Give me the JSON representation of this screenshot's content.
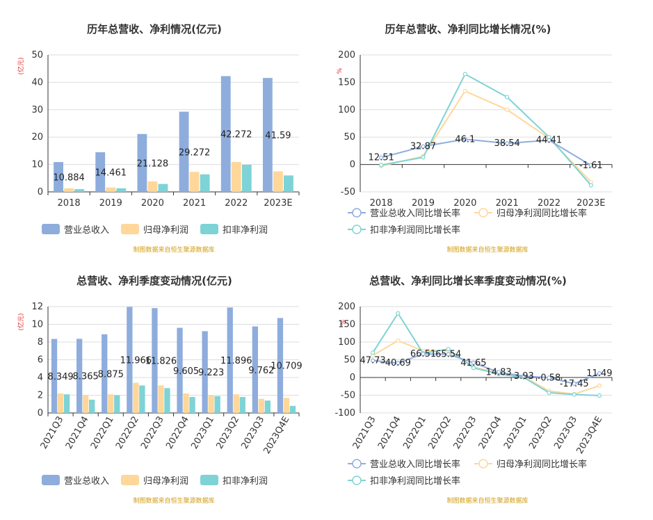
{
  "colors": {
    "revenue": "#8EADDD",
    "net": "#FFD79A",
    "deducted": "#7ED3D6",
    "ylabel_red": "#E0272A",
    "source": "#D29B0C",
    "axis": "#333333",
    "grid": "#DDDDDD"
  },
  "chart_data": [
    {
      "type": "bar",
      "title": "历年总营收、净利情况(亿元)",
      "ylabel": "(亿元)",
      "ylim": [
        0,
        50
      ],
      "yticks": [
        0,
        10,
        20,
        30,
        40,
        50
      ],
      "categories": [
        "2018",
        "2019",
        "2020",
        "2021",
        "2022",
        "2023E"
      ],
      "series": [
        {
          "name": "营业总收入",
          "values": [
            10.884,
            14.461,
            21.128,
            29.272,
            42.272,
            41.59
          ],
          "labels": [
            "10.884",
            "14.461",
            "21.128",
            "29.272",
            "42.272",
            "41.59"
          ]
        },
        {
          "name": "归母净利润",
          "values": [
            1.3,
            1.6,
            3.8,
            7.3,
            10.9,
            7.5
          ]
        },
        {
          "name": "扣非净利润",
          "values": [
            1.0,
            1.3,
            2.9,
            6.4,
            9.9,
            6.0
          ]
        }
      ],
      "legend": "bottom",
      "grid": true,
      "source": "制图数据来自恒生聚源数据库"
    },
    {
      "type": "line",
      "title": "历年总营收、净利同比增长情况(%)",
      "ylabel": "%",
      "ylim": [
        -50,
        200
      ],
      "yticks": [
        -50,
        0,
        50,
        100,
        150,
        200
      ],
      "categories": [
        "2018",
        "2019",
        "2020",
        "2021",
        "2022",
        "2023E"
      ],
      "series": [
        {
          "name": "营业总收入同比增长率",
          "values": [
            12.51,
            32.87,
            46.1,
            38.54,
            44.41,
            -1.61
          ],
          "labels": [
            "12.51",
            "32.87",
            "46.1",
            "38.54",
            "44.41",
            "-1.61"
          ]
        },
        {
          "name": "归母净利润同比增长率",
          "values": [
            -3,
            15,
            134,
            100,
            48,
            -32
          ]
        },
        {
          "name": "扣非净利润同比增长率",
          "values": [
            -1,
            13,
            165,
            123,
            50,
            -38
          ]
        }
      ],
      "legend": "bottom",
      "grid": true,
      "source": "制图数据来自恒生聚源数据库"
    },
    {
      "type": "bar",
      "title": "总营收、净利季度变动情况(亿元)",
      "ylabel": "(亿元)",
      "ylim": [
        0,
        12
      ],
      "yticks": [
        0,
        2,
        4,
        6,
        8,
        10,
        12
      ],
      "categories": [
        "2021Q3",
        "2021Q4",
        "2022Q1",
        "2022Q2",
        "2022Q3",
        "2022Q4",
        "2023Q1",
        "2023Q2",
        "2023Q3",
        "2023Q4E"
      ],
      "series": [
        {
          "name": "营业总收入",
          "values": [
            8.349,
            8.365,
            8.875,
            11.966,
            11.826,
            9.605,
            9.223,
            11.896,
            9.762,
            10.709
          ],
          "labels": [
            "8.349",
            "8.365",
            "8.875",
            "11.966",
            "11.826",
            "9.605",
            "9.223",
            "11.896",
            "9.762",
            "10.709"
          ]
        },
        {
          "name": "归母净利润",
          "values": [
            2.2,
            2.0,
            2.1,
            3.4,
            3.1,
            2.2,
            2.0,
            2.1,
            1.6,
            1.7
          ]
        },
        {
          "name": "扣非净利润",
          "values": [
            2.1,
            1.5,
            2.0,
            3.1,
            2.8,
            1.8,
            1.9,
            1.8,
            1.4,
            0.8
          ]
        }
      ],
      "legend": "bottom",
      "grid": true,
      "source": "制图数据来自恒生聚源数据库"
    },
    {
      "type": "line",
      "title": "总营收、净利同比增长率季度变动情况(%)",
      "ylabel": "%",
      "ylim": [
        -100,
        200
      ],
      "yticks": [
        -100,
        -50,
        0,
        50,
        100,
        150,
        200
      ],
      "categories": [
        "2021Q3",
        "2021Q4",
        "2022Q1",
        "2022Q2",
        "2022Q3",
        "2022Q4",
        "2023Q1",
        "2023Q2",
        "2023Q3",
        "2023Q4E"
      ],
      "series": [
        {
          "name": "营业总收入同比增长率",
          "values": [
            47.73,
            40.69,
            66.51,
            65.54,
            41.65,
            14.83,
            3.93,
            -0.58,
            -17.45,
            11.49
          ],
          "labels": [
            "47.73",
            "40.69",
            "66.51",
            "65.54",
            "41.65",
            "14.83",
            "3.93",
            "-0.58",
            "-17.45",
            "11.49"
          ]
        },
        {
          "name": "归母净利润同比增长率",
          "values": [
            62,
            104,
            75,
            76,
            30,
            12,
            2,
            -38,
            -47,
            -23
          ]
        },
        {
          "name": "扣非净利润同比增长率",
          "values": [
            70,
            181,
            68,
            80,
            27,
            10,
            0,
            -43,
            -48,
            -51
          ]
        }
      ],
      "legend": "bottom",
      "grid": true,
      "source": "制图数据来自恒生聚源数据库"
    }
  ]
}
